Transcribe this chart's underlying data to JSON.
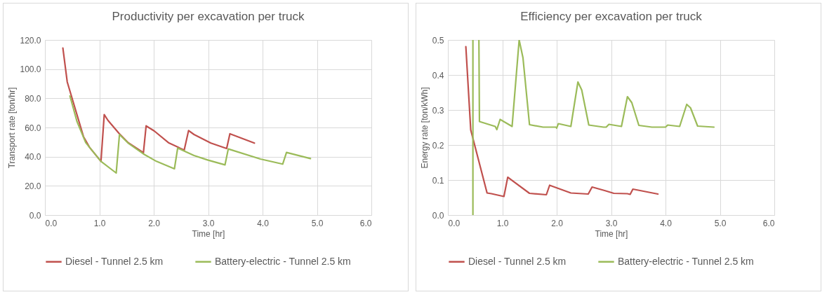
{
  "chart_data": [
    {
      "type": "line",
      "title": "Productivity per excavation per truck",
      "xlabel": "Time [hr]",
      "ylabel": "Transport rate [ton/hr]",
      "xlim": [
        0,
        6
      ],
      "ylim": [
        0,
        120
      ],
      "xticks": [
        {
          "value": 0,
          "label": "0.0"
        },
        {
          "value": 1,
          "label": "1.0"
        },
        {
          "value": 2,
          "label": "2.0"
        },
        {
          "value": 3,
          "label": "3.0"
        },
        {
          "value": 4,
          "label": "4.0"
        },
        {
          "value": 5,
          "label": "5.0"
        },
        {
          "value": 6,
          "label": "6.0"
        }
      ],
      "yticks": [
        {
          "value": 0,
          "label": "0.0"
        },
        {
          "value": 20,
          "label": "20.0"
        },
        {
          "value": 40,
          "label": "40.0"
        },
        {
          "value": 60,
          "label": "60.0"
        },
        {
          "value": 80,
          "label": "80.0"
        },
        {
          "value": 100,
          "label": "100.0"
        },
        {
          "value": 120,
          "label": "120.0"
        }
      ],
      "grid": true,
      "legend": "bottom",
      "marker": "none",
      "series": [
        {
          "name": "Diesel - Tunnel 2.5 km",
          "color": "#c0504d",
          "x": [
            0.33,
            0.41,
            0.71,
            0.82,
            1.03,
            1.09,
            1.16,
            1.36,
            1.53,
            1.81,
            1.86,
            2.01,
            2.27,
            2.48,
            2.56,
            2.64,
            2.74,
            3.05,
            3.34,
            3.4,
            3.85
          ],
          "values": [
            114.4,
            91.2,
            53.6,
            46.4,
            36.8,
            68.8,
            64.8,
            56,
            49.6,
            42.7,
            61.1,
            57.6,
            49.6,
            45.9,
            44.5,
            57.9,
            55.2,
            49.3,
            45.6,
            55.7,
            49.3
          ]
        },
        {
          "name": "Battery-electric - Tunnel 2.5 km",
          "color": "#9bbb59",
          "x": [
            0.46,
            0.59,
            0.75,
            1.03,
            1.31,
            1.37,
            1.53,
            1.81,
            2.05,
            2.38,
            2.44,
            2.74,
            3.0,
            3.31,
            3.37,
            3.96,
            4.37,
            4.44,
            4.88
          ],
          "values": [
            81.6,
            64,
            49.6,
            36.8,
            28.8,
            55.2,
            49.3,
            41.9,
            36.8,
            31.7,
            45.9,
            40.8,
            37.6,
            34.4,
            45.3,
            38.4,
            34.9,
            42.9,
            38.7
          ]
        }
      ]
    },
    {
      "type": "line",
      "title": "Efficiency per excavation per truck",
      "xlabel": "Time [hr]",
      "ylabel": "Energy rate [ton/kWh]",
      "xlim": [
        0,
        6
      ],
      "ylim": [
        0,
        0.5
      ],
      "xticks": [
        {
          "value": 0,
          "label": "0.0"
        },
        {
          "value": 1,
          "label": "1.0"
        },
        {
          "value": 2,
          "label": "2.0"
        },
        {
          "value": 3,
          "label": "3.0"
        },
        {
          "value": 4,
          "label": "4.0"
        },
        {
          "value": 5,
          "label": "5.0"
        },
        {
          "value": 6,
          "label": "6.0"
        }
      ],
      "yticks": [
        {
          "value": 0,
          "label": "0.0"
        },
        0.1,
        0.2,
        0.3,
        0.4,
        0.5
      ],
      "grid": true,
      "legend": "bottom",
      "marker": "none",
      "series": [
        {
          "name": "Diesel - Tunnel 2.5 km",
          "color": "#c0504d",
          "x": [
            0.33,
            0.42,
            0.72,
            0.8,
            1.03,
            1.1,
            1.5,
            1.81,
            1.87,
            2.26,
            2.58,
            2.65,
            2.88,
            3.05,
            3.3,
            3.35,
            3.4,
            3.86
          ],
          "values": [
            0.481,
            0.243,
            0.063,
            0.061,
            0.053,
            0.108,
            0.062,
            0.058,
            0.085,
            0.063,
            0.06,
            0.08,
            0.07,
            0.062,
            0.061,
            0.059,
            0.074,
            0.06
          ]
        },
        {
          "name": "Battery-electric - Tunnel 2.5 km",
          "color": "#9bbb59",
          "x": [
            0.46,
            0.46,
            0.52,
            0.57,
            0.58,
            0.87,
            0.9,
            0.96,
            1.18,
            1.31,
            1.38,
            1.5,
            1.75,
            1.99,
            2.0,
            2.03,
            2.26,
            2.39,
            2.46,
            2.59,
            2.86,
            2.91,
            2.96,
            3.19,
            3.3,
            3.38,
            3.51,
            3.75,
            4.0,
            4.04,
            4.26,
            4.39,
            4.46,
            4.59,
            4.89
          ],
          "values": [
            0.0,
            0.5,
            null,
            0.5,
            0.267,
            0.253,
            0.244,
            0.273,
            0.253,
            0.5,
            0.449,
            0.258,
            0.251,
            0.251,
            0.248,
            0.261,
            0.253,
            0.38,
            0.357,
            0.257,
            0.251,
            0.251,
            0.259,
            0.253,
            0.338,
            0.321,
            0.256,
            0.251,
            0.251,
            0.257,
            0.253,
            0.316,
            0.306,
            0.254,
            0.251
          ]
        }
      ]
    }
  ]
}
